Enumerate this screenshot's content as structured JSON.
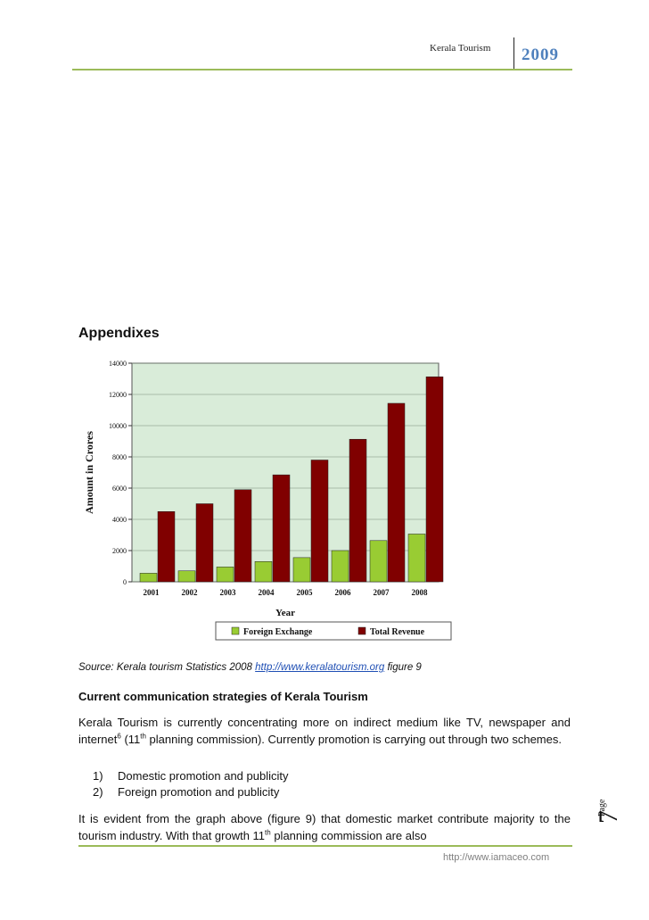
{
  "header": {
    "title": "Kerala Tourism",
    "year": "2009"
  },
  "appendix_heading": "Appendixes",
  "chart_data": {
    "type": "bar",
    "categories": [
      "2001",
      "2002",
      "2003",
      "2004",
      "2005",
      "2006",
      "2007",
      "2008"
    ],
    "series": [
      {
        "name": "Foreign Exchange",
        "values": [
          550,
          700,
          950,
          1300,
          1550,
          2000,
          2640,
          3060
        ],
        "color": "#99cc33"
      },
      {
        "name": "Total Revenue",
        "values": [
          4500,
          5000,
          5900,
          6850,
          7800,
          9130,
          11430,
          13130
        ],
        "color": "#800000"
      }
    ],
    "xlabel": "Year",
    "ylabel": "Amount in Crores",
    "ylim": [
      0,
      14000
    ],
    "yticks": [
      "0",
      "2000",
      "4000",
      "6000",
      "8000",
      "10000",
      "12000",
      "14000"
    ],
    "grid": true,
    "plot_background": "#d9ecd9",
    "legend_placement": "bottom"
  },
  "source": {
    "prefix": "Source: Kerala tourism Statistics 2008 ",
    "link": "http://www.keralatourism.org",
    "suffix": " figure 9"
  },
  "section_heading": "Current communication strategies of Kerala Tourism",
  "para1": {
    "a": "Kerala Tourism is currently concentrating more on indirect medium like TV, newspaper and internet",
    "sup1": "6",
    "b": " (11",
    "sup2": "th",
    "c": " planning commission). Currently promotion is carrying out through two schemes."
  },
  "list": [
    {
      "num": "1)",
      "text": "Domestic promotion and publicity"
    },
    {
      "num": "2)",
      "text": "Foreign promotion and publicity"
    }
  ],
  "para2": {
    "a": "It is evident from the graph above (figure 9) that domestic market contribute majority to the tourism industry. With that growth 11",
    "sup": "th",
    "b": " planning commission are also"
  },
  "footer": {
    "url": "http://www.iamaceo.com",
    "page_word": "Page",
    "page_number": "7"
  }
}
